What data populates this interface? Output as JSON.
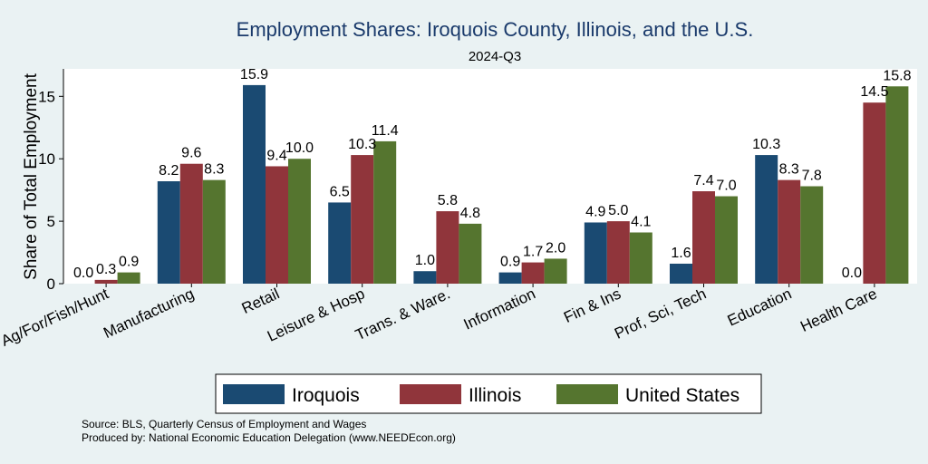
{
  "chart_data": {
    "type": "bar",
    "title": "Employment Shares: Iroquois County, Illinois, and the U.S.",
    "subtitle": "2024-Q3",
    "xlabel": "",
    "ylabel": "Share of Total Employment",
    "ylim": [
      0,
      17.2
    ],
    "yticks": [
      0,
      5,
      10,
      15
    ],
    "categories": [
      "Ag/For/Fish/Hunt",
      "Manufacturing",
      "Retail",
      "Leisure & Hosp",
      "Trans. & Ware.",
      "Information",
      "Fin & Ins",
      "Prof, Sci, Tech",
      "Education",
      "Health Care"
    ],
    "series": [
      {
        "name": "Iroquois",
        "color": "#1a4a72",
        "values": [
          0.0,
          8.2,
          15.9,
          6.5,
          1.0,
          0.9,
          4.9,
          1.6,
          10.3,
          0.0
        ]
      },
      {
        "name": "Illinois",
        "color": "#90353b",
        "values": [
          0.3,
          9.6,
          9.4,
          10.3,
          5.8,
          1.7,
          5.0,
          7.4,
          8.3,
          14.5
        ]
      },
      {
        "name": "United States",
        "color": "#55752f",
        "values": [
          0.9,
          8.3,
          10.0,
          11.4,
          4.8,
          2.0,
          4.1,
          7.0,
          7.8,
          15.8
        ]
      }
    ],
    "legend_position": "bottom",
    "grid": false
  },
  "footer": {
    "source": "Source: BLS, Quarterly Census of Employment and Wages",
    "produced_by": "Produced by: National Economic Education Delegation (www.NEEDEcon.org)"
  }
}
